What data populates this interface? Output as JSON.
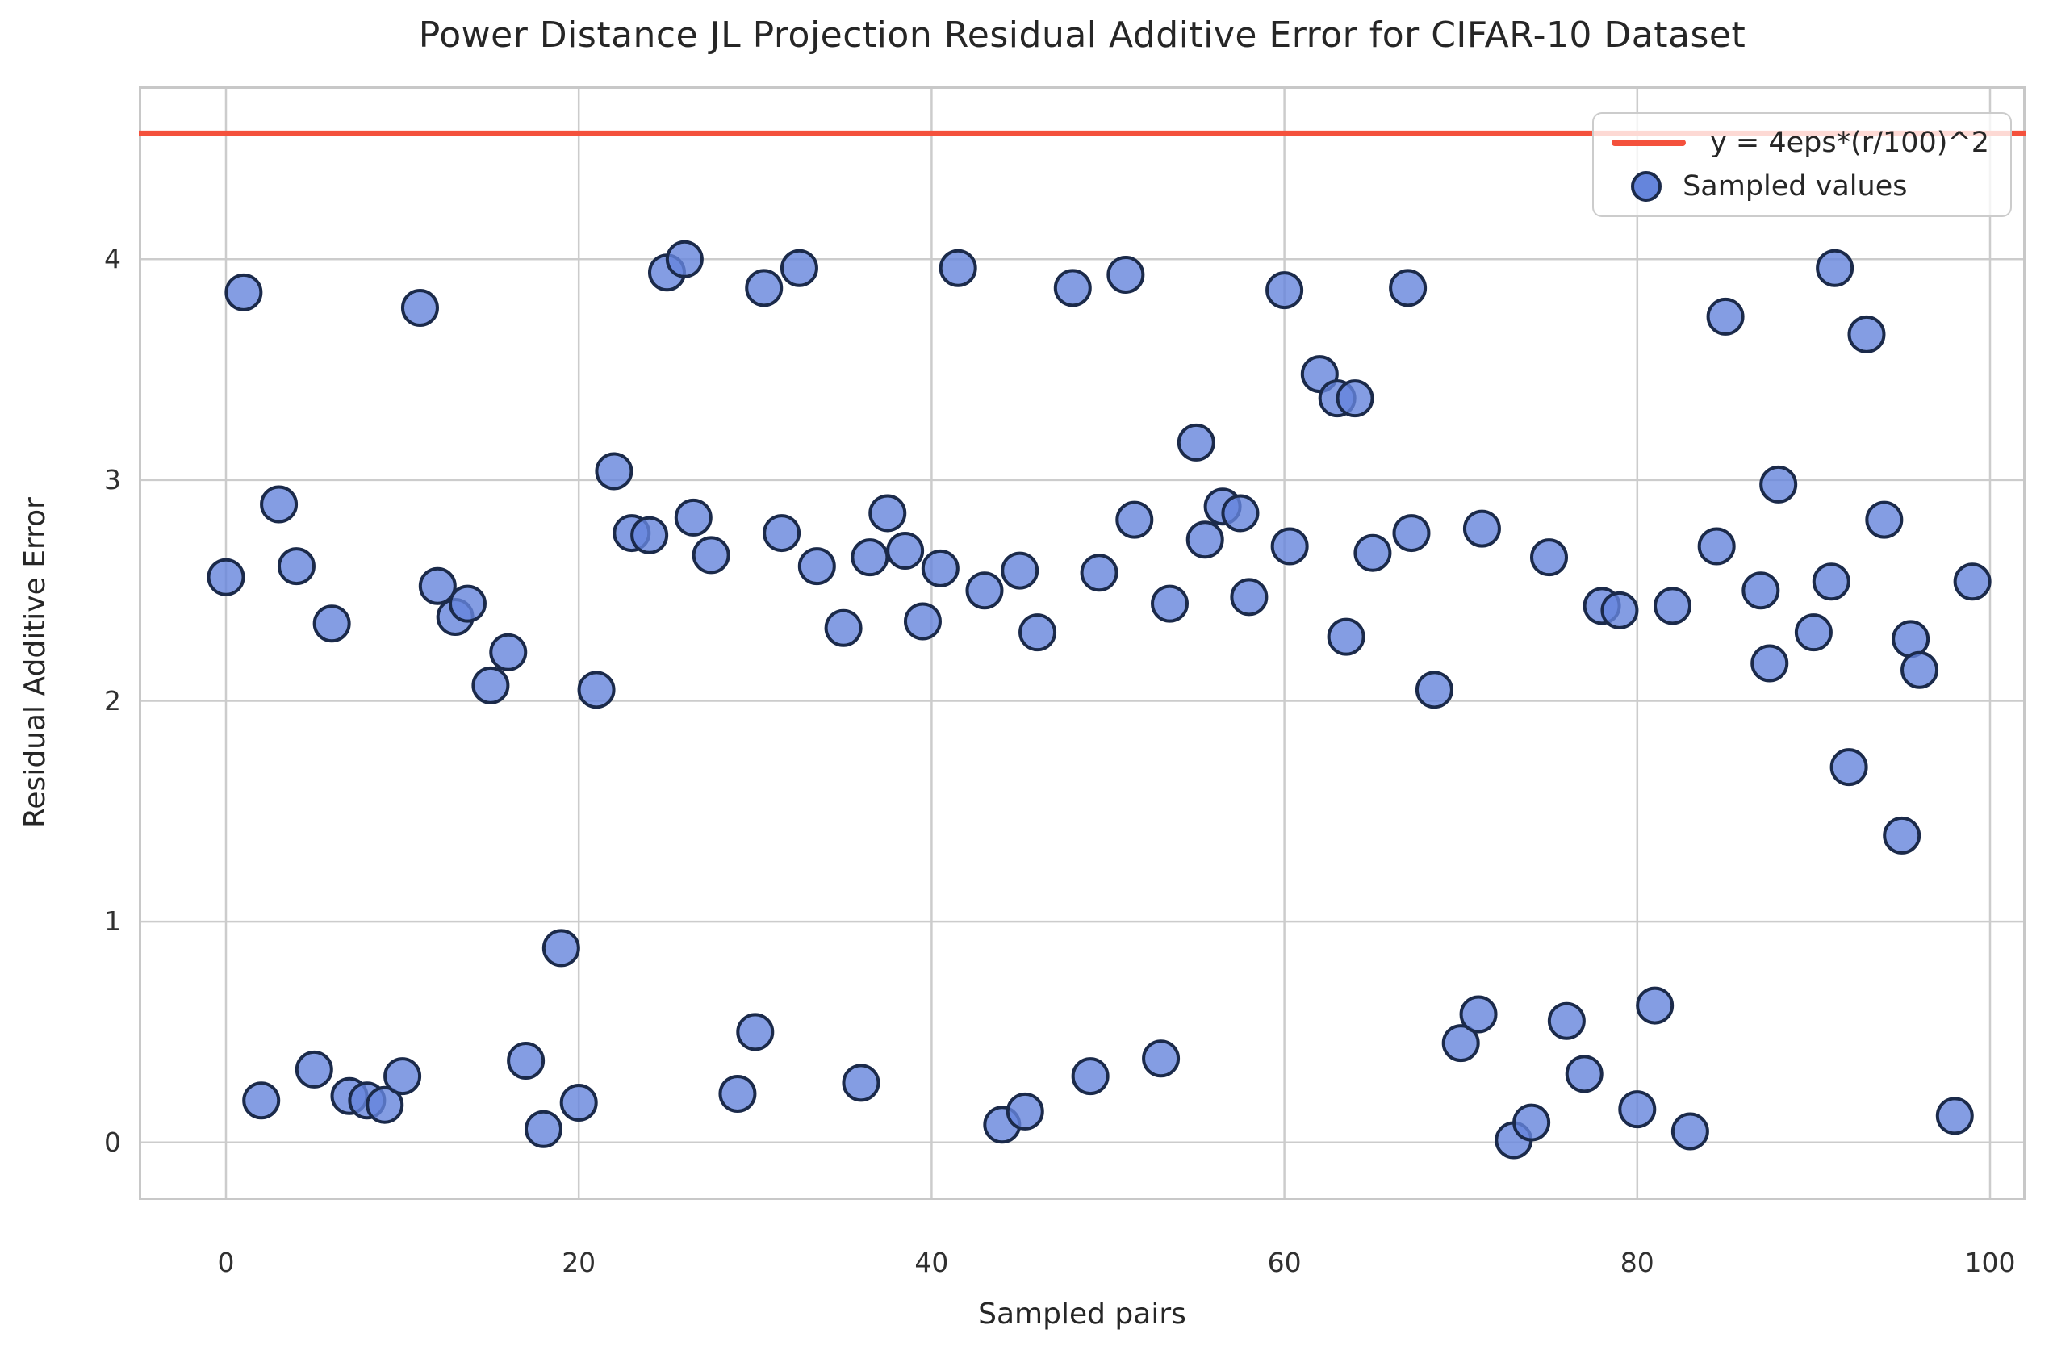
{
  "chart_data": {
    "type": "scatter",
    "title": "Power Distance JL Projection Residual Additive Error for CIFAR-10 Dataset",
    "xlabel": "Sampled pairs",
    "ylabel": "Residual Additive Error",
    "x_ticks": [
      0,
      20,
      40,
      60,
      80,
      100
    ],
    "y_ticks": [
      0,
      1,
      2,
      3,
      4
    ],
    "xlim": [
      -4.9,
      102.0
    ],
    "ylim": [
      -0.26,
      4.78
    ],
    "grid": true,
    "bound_line": {
      "label": "y = 4eps*(r/100)^2",
      "y": 4.57
    },
    "legend": {
      "position": "upper right",
      "entries": [
        {
          "label": "y = 4eps*(r/100)^2",
          "type": "line"
        },
        {
          "label": "Sampled values",
          "type": "marker"
        }
      ]
    },
    "series": [
      {
        "name": "Sampled values",
        "points": [
          [
            0,
            2.56
          ],
          [
            1,
            3.85
          ],
          [
            2,
            0.19
          ],
          [
            3,
            2.89
          ],
          [
            4,
            2.61
          ],
          [
            5,
            0.33
          ],
          [
            6,
            2.35
          ],
          [
            7,
            0.21
          ],
          [
            8,
            0.19
          ],
          [
            9,
            0.17
          ],
          [
            10,
            0.3
          ],
          [
            11,
            3.78
          ],
          [
            12,
            2.52
          ],
          [
            13,
            2.38
          ],
          [
            13.7,
            2.44
          ],
          [
            15,
            2.07
          ],
          [
            16,
            2.22
          ],
          [
            17,
            0.37
          ],
          [
            18,
            0.06
          ],
          [
            19,
            0.88
          ],
          [
            20,
            0.18
          ],
          [
            21,
            2.05
          ],
          [
            22,
            3.04
          ],
          [
            23,
            2.76
          ],
          [
            24,
            2.75
          ],
          [
            25,
            3.94
          ],
          [
            26,
            4.0
          ],
          [
            26.5,
            2.83
          ],
          [
            27.5,
            2.66
          ],
          [
            29,
            0.22
          ],
          [
            30,
            0.5
          ],
          [
            30.5,
            3.87
          ],
          [
            31.5,
            2.76
          ],
          [
            32.5,
            3.96
          ],
          [
            33.5,
            2.61
          ],
          [
            35,
            2.33
          ],
          [
            36,
            0.27
          ],
          [
            36.5,
            2.65
          ],
          [
            37.5,
            2.85
          ],
          [
            38.5,
            2.68
          ],
          [
            39.5,
            2.36
          ],
          [
            40.5,
            2.6
          ],
          [
            41.5,
            3.96
          ],
          [
            43,
            2.5
          ],
          [
            44,
            0.08
          ],
          [
            45,
            2.59
          ],
          [
            45.3,
            0.14
          ],
          [
            46,
            2.31
          ],
          [
            48,
            3.87
          ],
          [
            49,
            0.3
          ],
          [
            49.5,
            2.58
          ],
          [
            51,
            3.93
          ],
          [
            51.5,
            2.82
          ],
          [
            53,
            0.38
          ],
          [
            53.5,
            2.44
          ],
          [
            55,
            3.17
          ],
          [
            55.5,
            2.73
          ],
          [
            56.5,
            2.88
          ],
          [
            57.5,
            2.85
          ],
          [
            58,
            2.47
          ],
          [
            60,
            3.86
          ],
          [
            60.3,
            2.7
          ],
          [
            62,
            3.48
          ],
          [
            63,
            3.37
          ],
          [
            63.5,
            2.29
          ],
          [
            64,
            3.37
          ],
          [
            65,
            2.67
          ],
          [
            67,
            3.87
          ],
          [
            67.2,
            2.76
          ],
          [
            68.5,
            2.05
          ],
          [
            70,
            0.45
          ],
          [
            71,
            0.58
          ],
          [
            71.2,
            2.78
          ],
          [
            73,
            0.01
          ],
          [
            74,
            0.09
          ],
          [
            75,
            2.65
          ],
          [
            76,
            0.55
          ],
          [
            77,
            0.31
          ],
          [
            78,
            2.43
          ],
          [
            79,
            2.41
          ],
          [
            80,
            0.15
          ],
          [
            81,
            0.62
          ],
          [
            82,
            2.43
          ],
          [
            83,
            0.05
          ],
          [
            84.5,
            2.7
          ],
          [
            85,
            3.74
          ],
          [
            87,
            2.5
          ],
          [
            87.5,
            2.17
          ],
          [
            88,
            2.98
          ],
          [
            90,
            2.31
          ],
          [
            91,
            2.54
          ],
          [
            91.2,
            3.96
          ],
          [
            92,
            1.7
          ],
          [
            93,
            3.66
          ],
          [
            94,
            2.82
          ],
          [
            95,
            1.39
          ],
          [
            95.5,
            2.28
          ],
          [
            96,
            2.14
          ],
          [
            98,
            0.12
          ],
          [
            99,
            2.54
          ]
        ]
      }
    ]
  },
  "colors": {
    "marker_fill": "#6585DC",
    "marker_edge": "#1B2A4A",
    "bound_line": "#F4513C",
    "grid": "#CCCCCC",
    "spine": "#C8C8C8",
    "text": "#262626"
  }
}
